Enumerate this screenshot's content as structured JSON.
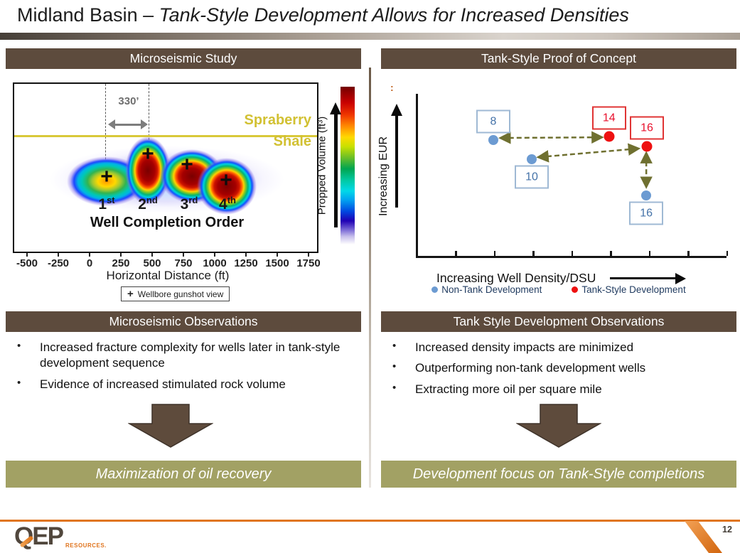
{
  "title": {
    "regular": "Midland Basin – ",
    "italic": "Tank-Style Development Allows for Increased Densities"
  },
  "colors": {
    "header_brown": "#5d4b3d",
    "conclusion_olive": "#a2a164",
    "accent_orange": "#e0751f",
    "dashed_arrow_olive": "#6f7030",
    "formation_yellow": "#d2c133"
  },
  "left": {
    "header": "Microseismic Study",
    "figure": {
      "spacing_label": "330’",
      "formation": [
        "Spraberry",
        "Shale"
      ],
      "wells": [
        {
          "num": "1",
          "sup": "st"
        },
        {
          "num": "2",
          "sup": "nd"
        },
        {
          "num": "3",
          "sup": "rd"
        },
        {
          "num": "4",
          "sup": "th"
        }
      ],
      "order_label": "Well Completion Order",
      "colorbar_label": "Propped Volume (ft³)",
      "x_ticks": [
        "-500",
        "-250",
        "0",
        "250",
        "500",
        "750",
        "1000",
        "1250",
        "1500",
        "1750"
      ],
      "x_label": "Horizontal Distance (ft)",
      "legend_marker": "+",
      "legend_text": "Wellbore gunshot view"
    },
    "obs_header": "Microseismic Observations",
    "bullets": [
      "Increased fracture complexity for wells later in tank-style development sequence",
      "Evidence of increased stimulated rock volume"
    ],
    "conclusion": "Maximization of oil recovery"
  },
  "right": {
    "header": "Tank-Style Proof of Concept",
    "stray_mark": ":",
    "obs_header": "Tank Style Development Observations",
    "bullets": [
      "Increased density impacts are minimized",
      "Outperforming non-tank development wells",
      "Extracting more oil per square mile"
    ],
    "conclusion": "Development focus on Tank-Style completions"
  },
  "footer": {
    "logo": "QEP",
    "logo_sub": "RESOURCES.",
    "page": "12"
  },
  "chart_data": {
    "type": "scatter",
    "title": "Tank-Style Proof of Concept",
    "xlabel": "Increasing Well Density/DSU",
    "ylabel": "Increasing EUR",
    "axes_quantitative": false,
    "note": "Axes are qualitative (relative 0-10 scale); point labels give wells per DSU",
    "xlim": [
      0,
      10
    ],
    "ylim": [
      0,
      10
    ],
    "legend_position": "bottom",
    "series": [
      {
        "name": "Non-Tank Development",
        "color": "#6c9bd2",
        "box_border": "#9fb9d4",
        "label_color": "#4472a8",
        "dot_size": 14,
        "points": [
          {
            "label": "8",
            "x": 2.47,
            "y": 7.18,
            "label_pos": "above"
          },
          {
            "label": "10",
            "x": 3.72,
            "y": 5.99,
            "label_pos": "below"
          },
          {
            "label": "16",
            "x": 7.44,
            "y": 3.74,
            "label_pos": "below"
          }
        ]
      },
      {
        "name": "Tank-Style Development",
        "color": "#ee1111",
        "box_border": "#e03434",
        "label_color": "#e8112d",
        "dot_size": 15,
        "points": [
          {
            "label": "14",
            "x": 6.23,
            "y": 7.4,
            "label_pos": "above"
          },
          {
            "label": "16",
            "x": 7.46,
            "y": 6.78,
            "label_pos": "above"
          }
        ]
      }
    ],
    "arrows": [
      {
        "x1": 2.72,
        "y1": 7.31,
        "x2": 5.98,
        "y2": 7.35
      },
      {
        "x1": 3.95,
        "y1": 6.12,
        "x2": 7.17,
        "y2": 6.65
      },
      {
        "x1": 7.44,
        "y1": 6.34,
        "x2": 7.44,
        "y2": 4.31
      }
    ]
  }
}
